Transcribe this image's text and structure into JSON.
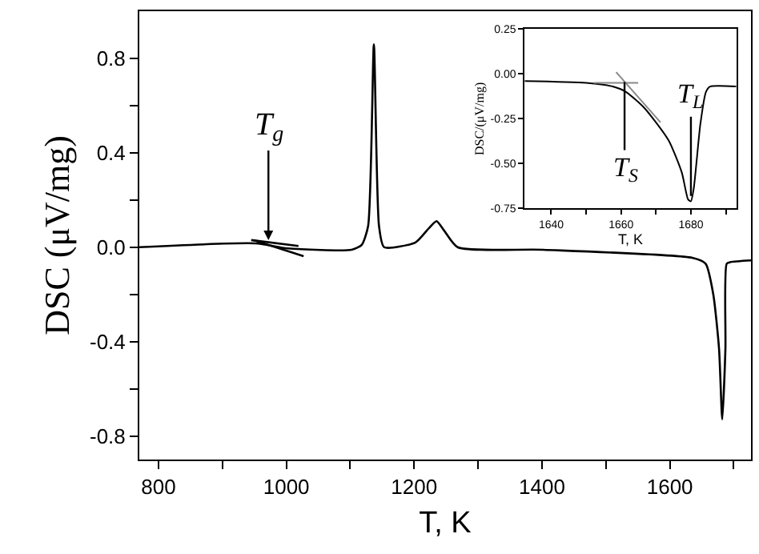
{
  "chart_data": [
    {
      "type": "line",
      "xlabel": "T, K",
      "ylabel": "DSC (μV/mg)",
      "xlim": [
        770,
        1727
      ],
      "ylim": [
        -0.9,
        1.0
      ],
      "xticks": [
        800,
        {
          "value": 900,
          "label": null
        },
        1000,
        {
          "value": 1100,
          "label": null
        },
        1200,
        {
          "value": 1300,
          "label": null
        },
        1400,
        {
          "value": 1500,
          "label": null
        },
        1600,
        {
          "value": 1700,
          "label": null
        }
      ],
      "yticks": [
        {
          "value": -0.8,
          "label": "-0.8"
        },
        {
          "value": -0.6,
          "label": null
        },
        {
          "value": -0.4,
          "label": "-0.4"
        },
        {
          "value": -0.2,
          "label": null
        },
        {
          "value": 0,
          "label": "0.0"
        },
        {
          "value": 0.2,
          "label": null
        },
        {
          "value": 0.4,
          "label": "0.4"
        },
        {
          "value": 0.6,
          "label": null
        },
        {
          "value": 0.8,
          "label": "0.8"
        }
      ],
      "marker": "none",
      "line_style": "solid",
      "series": [
        {
          "color": "#000000",
          "x": [
            770,
            952,
            1002,
            1102,
            1118,
            1128,
            1137,
            1145,
            1153,
            1202,
            1223,
            1235,
            1247,
            1268,
            1402,
            1635,
            1656,
            1668,
            1677,
            1682,
            1687,
            1689,
            1695,
            1727
          ],
          "values": [
            0.0,
            0.016,
            -0.005,
            -0.011,
            0.01,
            0.09,
            0.86,
            0.09,
            0.0,
            0.02,
            0.08,
            0.11,
            0.07,
            0.0,
            -0.011,
            -0.045,
            -0.07,
            -0.2,
            -0.43,
            -0.73,
            -0.43,
            -0.07,
            -0.063,
            -0.056
          ]
        },
        {
          "type": "line",
          "color": "#000000",
          "x": [
            945,
            1019
          ],
          "values": [
            0.03,
            0.005
          ]
        },
        {
          "type": "line",
          "color": "#000000",
          "x": [
            949,
            1027
          ],
          "values": [
            0.03,
            -0.038
          ]
        }
      ],
      "annotations": [
        {
          "text": "T$_{g}$",
          "x": 972,
          "y": 0.03
        }
      ]
    },
    {
      "type": "line",
      "xlabel": "T, K",
      "ylabel": "DSC/(μV/mg)",
      "xlim": [
        1632.4,
        1693
      ],
      "ylim": [
        -0.75,
        0.25
      ],
      "xticks": [
        1640,
        {
          "value": 1650,
          "label": null
        },
        1660,
        {
          "value": 1670,
          "label": null
        },
        1680,
        {
          "value": 1690,
          "label": null
        }
      ],
      "yticks": [
        {
          "value": -0.75,
          "label": "-0.75"
        },
        {
          "value": -0.5,
          "label": "-0.50"
        },
        {
          "value": -0.25,
          "label": "-0.25"
        },
        {
          "value": 0,
          "label": "0.00"
        },
        {
          "value": 0.25,
          "label": "0.25"
        }
      ],
      "marker": "none",
      "line_style": "solid",
      "series": [
        {
          "color": "#000000",
          "x": [
            1632.4,
            1650,
            1657.6,
            1661.4,
            1666.7,
            1673.6,
            1677.4,
            1679.2,
            1680,
            1680.8,
            1682.7,
            1684.3,
            1685.5,
            1693
          ],
          "values": [
            -0.04,
            -0.05,
            -0.07,
            -0.1,
            -0.19,
            -0.37,
            -0.55,
            -0.7,
            -0.71,
            -0.64,
            -0.28,
            -0.1,
            -0.07,
            -0.07
          ]
        },
        {
          "type": "line",
          "color": "#888888",
          "x": [
            1652.2,
            1664.9
          ],
          "values": [
            -0.05,
            -0.05
          ]
        },
        {
          "type": "line",
          "color": "#888888",
          "x": [
            1658.6,
            1671.3
          ],
          "values": [
            0.01,
            -0.27
          ]
        }
      ],
      "annotations": [
        {
          "text": "T$_{S}$",
          "x": 1661,
          "y": -0.045
        },
        {
          "text": "T$_{L}$",
          "x": 1680,
          "y": -0.68
        }
      ]
    }
  ]
}
